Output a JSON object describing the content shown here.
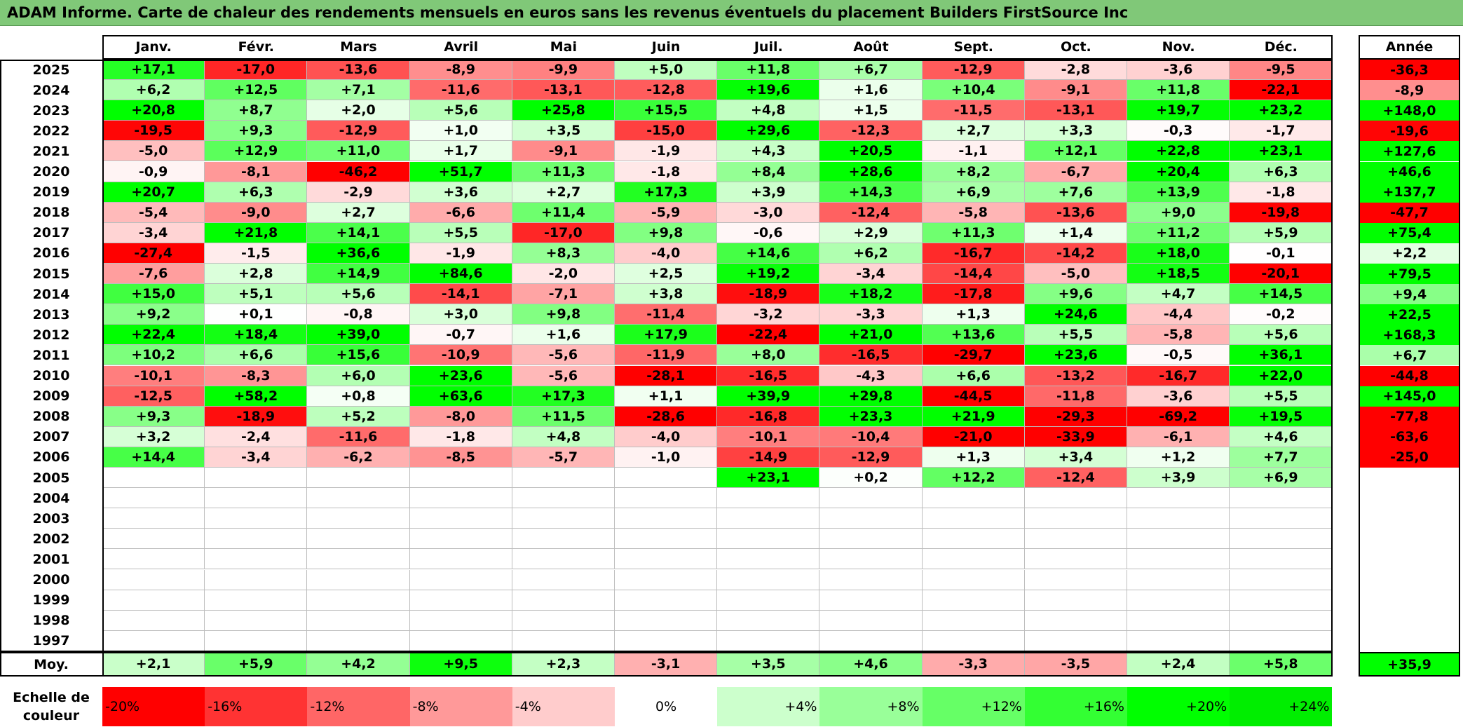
{
  "title": "ADAM Informe. Carte de chaleur des rendements mensuels en euros sans les revenus éventuels du placement Builders FirstSource Inc",
  "chart_data": {
    "type": "heatmap",
    "months": [
      "Janv.",
      "Févr.",
      "Mars",
      "Avril",
      "Mai",
      "Juin",
      "Juil.",
      "Août",
      "Sept.",
      "Oct.",
      "Nov.",
      "Déc."
    ],
    "year_header": "Année",
    "rows": [
      {
        "year": "2025",
        "values": [
          "+17,1",
          "-17,0",
          "-13,6",
          "-8,9",
          "-9,9",
          "+5,0",
          "+11,8",
          "+6,7",
          "-12,9",
          "-2,8",
          "-3,6",
          "-9,5"
        ],
        "annual": "-36,3"
      },
      {
        "year": "2024",
        "values": [
          "+6,2",
          "+12,5",
          "+7,1",
          "-11,6",
          "-13,1",
          "-12,8",
          "+19,6",
          "+1,6",
          "+10,4",
          "-9,1",
          "+11,8",
          "-22,1"
        ],
        "annual": "-8,9"
      },
      {
        "year": "2023",
        "values": [
          "+20,8",
          "+8,7",
          "+2,0",
          "+5,6",
          "+25,8",
          "+15,5",
          "+4,8",
          "+1,5",
          "-11,5",
          "-13,1",
          "+19,7",
          "+23,2"
        ],
        "annual": "+148,0"
      },
      {
        "year": "2022",
        "values": [
          "-19,5",
          "+9,3",
          "-12,9",
          "+1,0",
          "+3,5",
          "-15,0",
          "+29,6",
          "-12,3",
          "+2,7",
          "+3,3",
          "-0,3",
          "-1,7"
        ],
        "annual": "-19,6"
      },
      {
        "year": "2021",
        "values": [
          "-5,0",
          "+12,9",
          "+11,0",
          "+1,7",
          "-9,1",
          "-1,9",
          "+4,3",
          "+20,5",
          "-1,1",
          "+12,1",
          "+22,8",
          "+23,1"
        ],
        "annual": "+127,6"
      },
      {
        "year": "2020",
        "values": [
          "-0,9",
          "-8,1",
          "-46,2",
          "+51,7",
          "+11,3",
          "-1,8",
          "+8,4",
          "+28,6",
          "+8,2",
          "-6,7",
          "+20,4",
          "+6,3"
        ],
        "annual": "+46,6"
      },
      {
        "year": "2019",
        "values": [
          "+20,7",
          "+6,3",
          "-2,9",
          "+3,6",
          "+2,7",
          "+17,3",
          "+3,9",
          "+14,3",
          "+6,9",
          "+7,6",
          "+13,9",
          "-1,8"
        ],
        "annual": "+137,7"
      },
      {
        "year": "2018",
        "values": [
          "-5,4",
          "-9,0",
          "+2,7",
          "-6,6",
          "+11,4",
          "-5,9",
          "-3,0",
          "-12,4",
          "-5,8",
          "-13,6",
          "+9,0",
          "-19,8"
        ],
        "annual": "-47,7"
      },
      {
        "year": "2017",
        "values": [
          "-3,4",
          "+21,8",
          "+14,1",
          "+5,5",
          "-17,0",
          "+9,8",
          "-0,6",
          "+2,9",
          "+11,3",
          "+1,4",
          "+11,2",
          "+5,9"
        ],
        "annual": "+75,4"
      },
      {
        "year": "2016",
        "values": [
          "-27,4",
          "-1,5",
          "+36,6",
          "-1,9",
          "+8,3",
          "-4,0",
          "+14,6",
          "+6,2",
          "-16,7",
          "-14,2",
          "+18,0",
          "-0,1"
        ],
        "annual": "+2,2"
      },
      {
        "year": "2015",
        "values": [
          "-7,6",
          "+2,8",
          "+14,9",
          "+84,6",
          "-2,0",
          "+2,5",
          "+19,2",
          "-3,4",
          "-14,4",
          "-5,0",
          "+18,5",
          "-20,1"
        ],
        "annual": "+79,5"
      },
      {
        "year": "2014",
        "values": [
          "+15,0",
          "+5,1",
          "+5,6",
          "-14,1",
          "-7,1",
          "+3,8",
          "-18,9",
          "+18,2",
          "-17,8",
          "+9,6",
          "+4,7",
          "+14,5"
        ],
        "annual": "+9,4"
      },
      {
        "year": "2013",
        "values": [
          "+9,2",
          "+0,1",
          "-0,8",
          "+3,0",
          "+9,8",
          "-11,4",
          "-3,2",
          "-3,3",
          "+1,3",
          "+24,6",
          "-4,4",
          "-0,2"
        ],
        "annual": "+22,5"
      },
      {
        "year": "2012",
        "values": [
          "+22,4",
          "+18,4",
          "+39,0",
          "-0,7",
          "+1,6",
          "+17,9",
          "-22,4",
          "+21,0",
          "+13,6",
          "+5,5",
          "-5,8",
          "+5,6"
        ],
        "annual": "+168,3"
      },
      {
        "year": "2011",
        "values": [
          "+10,2",
          "+6,6",
          "+15,6",
          "-10,9",
          "-5,6",
          "-11,9",
          "+8,0",
          "-16,5",
          "-29,7",
          "+23,6",
          "-0,5",
          "+36,1"
        ],
        "annual": "+6,7"
      },
      {
        "year": "2010",
        "values": [
          "-10,1",
          "-8,3",
          "+6,0",
          "+23,6",
          "-5,6",
          "-28,1",
          "-16,5",
          "-4,3",
          "+6,6",
          "-13,2",
          "-16,7",
          "+22,0"
        ],
        "annual": "-44,8"
      },
      {
        "year": "2009",
        "values": [
          "-12,5",
          "+58,2",
          "+0,8",
          "+63,6",
          "+17,3",
          "+1,1",
          "+39,9",
          "+29,8",
          "-44,5",
          "-11,8",
          "-3,6",
          "+5,5"
        ],
        "annual": "+145,0"
      },
      {
        "year": "2008",
        "values": [
          "+9,3",
          "-18,9",
          "+5,2",
          "-8,0",
          "+11,5",
          "-28,6",
          "-16,8",
          "+23,3",
          "+21,9",
          "-29,3",
          "-69,2",
          "+19,5"
        ],
        "annual": "-77,8"
      },
      {
        "year": "2007",
        "values": [
          "+3,2",
          "-2,4",
          "-11,6",
          "-1,8",
          "+4,8",
          "-4,0",
          "-10,1",
          "-10,4",
          "-21,0",
          "-33,9",
          "-6,1",
          "+4,6"
        ],
        "annual": "-63,6"
      },
      {
        "year": "2006",
        "values": [
          "+14,4",
          "-3,4",
          "-6,2",
          "-8,5",
          "-5,7",
          "-1,0",
          "-14,9",
          "-12,9",
          "+1,3",
          "+3,4",
          "+1,2",
          "+7,7"
        ],
        "annual": "-25,0"
      },
      {
        "year": "2005",
        "values": [
          "",
          "",
          "",
          "",
          "",
          "",
          "+23,1",
          "+0,2",
          "+12,2",
          "-12,4",
          "+3,9",
          "+6,9"
        ],
        "annual": ""
      },
      {
        "year": "2004",
        "values": [
          "",
          "",
          "",
          "",
          "",
          "",
          "",
          "",
          "",
          "",
          "",
          ""
        ],
        "annual": ""
      },
      {
        "year": "2003",
        "values": [
          "",
          "",
          "",
          "",
          "",
          "",
          "",
          "",
          "",
          "",
          "",
          ""
        ],
        "annual": ""
      },
      {
        "year": "2002",
        "values": [
          "",
          "",
          "",
          "",
          "",
          "",
          "",
          "",
          "",
          "",
          "",
          ""
        ],
        "annual": ""
      },
      {
        "year": "2001",
        "values": [
          "",
          "",
          "",
          "",
          "",
          "",
          "",
          "",
          "",
          "",
          "",
          ""
        ],
        "annual": ""
      },
      {
        "year": "2000",
        "values": [
          "",
          "",
          "",
          "",
          "",
          "",
          "",
          "",
          "",
          "",
          "",
          ""
        ],
        "annual": ""
      },
      {
        "year": "1999",
        "values": [
          "",
          "",
          "",
          "",
          "",
          "",
          "",
          "",
          "",
          "",
          "",
          ""
        ],
        "annual": ""
      },
      {
        "year": "1998",
        "values": [
          "",
          "",
          "",
          "",
          "",
          "",
          "",
          "",
          "",
          "",
          "",
          ""
        ],
        "annual": ""
      },
      {
        "year": "1997",
        "values": [
          "",
          "",
          "",
          "",
          "",
          "",
          "",
          "",
          "",
          "",
          "",
          ""
        ],
        "annual": ""
      }
    ],
    "average": {
      "label": "Moy.",
      "values": [
        "+2,1",
        "+5,9",
        "+4,2",
        "+9,5",
        "+2,3",
        "-3,1",
        "+3,5",
        "+4,6",
        "-3,3",
        "-3,5",
        "+2,4",
        "+5,8"
      ],
      "annual": "+35,9"
    },
    "scale": {
      "label_line1": "Echelle de",
      "label_line2": "couleur",
      "steps": [
        {
          "label": "-20%",
          "color": "#ff0000"
        },
        {
          "label": "-16%",
          "color": "#ff3333"
        },
        {
          "label": "-12%",
          "color": "#ff6666"
        },
        {
          "label": "-8%",
          "color": "#ff9999"
        },
        {
          "label": "-4%",
          "color": "#ffcccc"
        },
        {
          "label": "0%",
          "color": "#ffffff"
        },
        {
          "label": "+4%",
          "color": "#ccffcc"
        },
        {
          "label": "+8%",
          "color": "#99ff99"
        },
        {
          "label": "+12%",
          "color": "#66ff66"
        },
        {
          "label": "+16%",
          "color": "#33ff33"
        },
        {
          "label": "+20%",
          "color": "#00ff00"
        },
        {
          "label": "+24%",
          "color": "#00ee00"
        }
      ]
    }
  }
}
